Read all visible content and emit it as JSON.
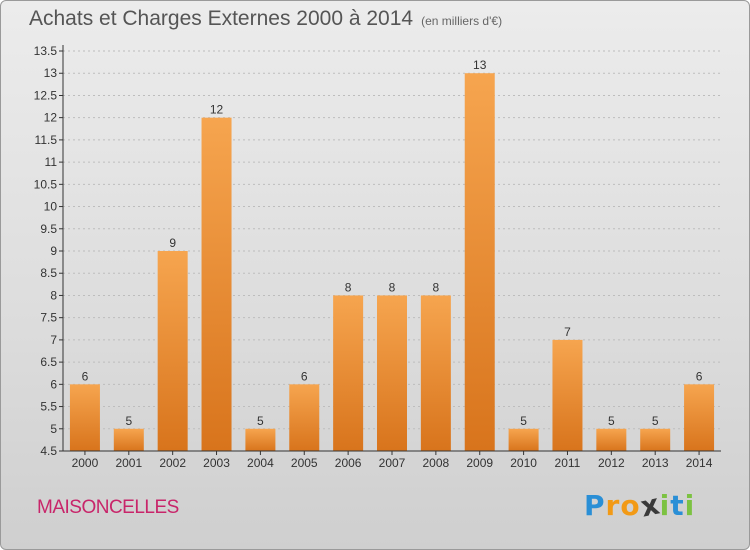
{
  "header": {
    "title": "Achats et Charges Externes 2000 à 2014",
    "unit": "(en milliers d'€)"
  },
  "footer": {
    "commune": "MAISONCELLES",
    "logo_letters": [
      "P",
      "r",
      "o",
      "x",
      "i",
      "t",
      "i"
    ],
    "logo_colors": [
      "#2a8fd6",
      "#f29a16",
      "#f29a16",
      "#3a3a3a",
      "#7cc242",
      "#2a8fd6",
      "#7cc242"
    ]
  },
  "colors": {
    "bar_light": "#f6a54f",
    "bar_dark": "#d8741c",
    "axis": "#333333",
    "grid": "#bdbdbd"
  },
  "chart_data": {
    "type": "bar",
    "categories": [
      "2000",
      "2001",
      "2002",
      "2003",
      "2004",
      "2005",
      "2006",
      "2007",
      "2008",
      "2009",
      "2010",
      "2011",
      "2012",
      "2013",
      "2014"
    ],
    "values": [
      6,
      5,
      9,
      12,
      5,
      6,
      8,
      8,
      8,
      13,
      5,
      7,
      5,
      5,
      6
    ],
    "value_labels": [
      "6",
      "5",
      "9",
      "12",
      "5",
      "6",
      "8",
      "8",
      "8",
      "13",
      "5",
      "7",
      "5",
      "5",
      "6"
    ],
    "ylim": [
      4.5,
      13.5
    ],
    "yticks": [
      "4.5",
      "5",
      "5.5",
      "6",
      "6.5",
      "7",
      "7.5",
      "8",
      "8.5",
      "9",
      "9.5",
      "10",
      "10.5",
      "11",
      "11.5",
      "12",
      "12.5",
      "13",
      "13.5"
    ],
    "grid": "horizontal-dashed"
  }
}
